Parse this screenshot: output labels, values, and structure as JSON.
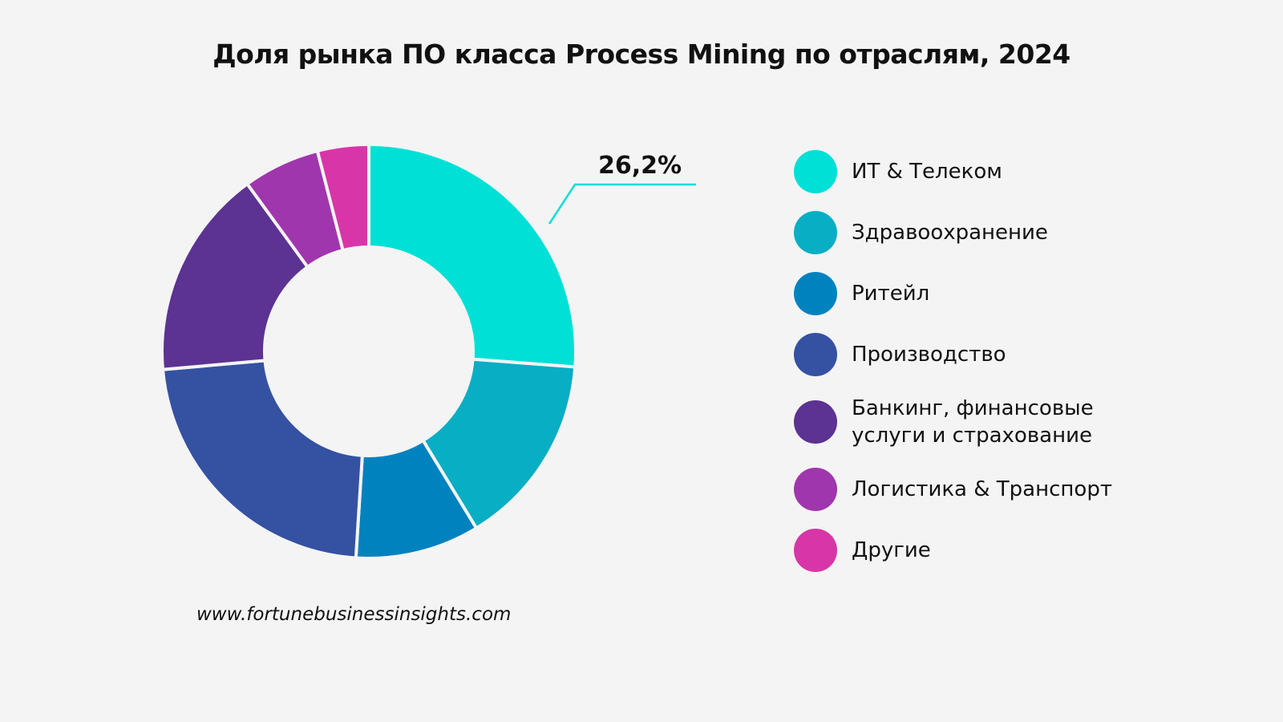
{
  "title": "Доля рынка ПО класса Process Mining по отраслям, 2024",
  "source": "www.fortunebusinessinsights.com",
  "chart_data": {
    "type": "pie",
    "title": "Доля рынка ПО класса Process Mining по отраслям, 2024",
    "donut": true,
    "legend_position": "right",
    "slices": [
      {
        "name": "ИТ & Телеком",
        "value": 26.2,
        "color": "#00e0d6",
        "label": "26,2%"
      },
      {
        "name": "Здравоохранение",
        "value": 15.1,
        "color": "#08aec3"
      },
      {
        "name": "Ритейл",
        "value": 9.7,
        "color": "#0082bf"
      },
      {
        "name": "Производство",
        "value": 22.6,
        "color": "#3551a2"
      },
      {
        "name": "Банкинг, финансовые\n услуги и страхование",
        "value": 16.4,
        "color": "#5c3292"
      },
      {
        "name": "Логистика & Транспорт",
        "value": 6.0,
        "color": "#a036ad"
      },
      {
        "name": "Другие",
        "value": 4.0,
        "color": "#d836a8"
      }
    ]
  }
}
